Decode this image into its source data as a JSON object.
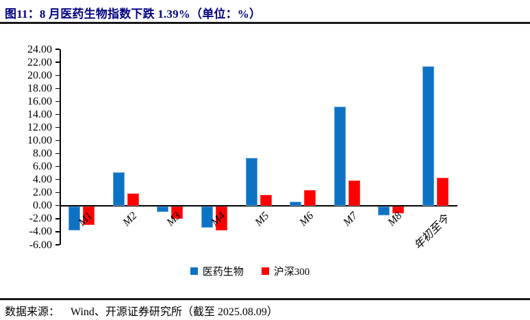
{
  "title": "图11：8 月医药生物指数下跌 1.39%（单位：%）",
  "title_color": "#000080",
  "footer": {
    "source_label": "数据来源：",
    "source_text": "Wind、开源证券研究所（截至 2025.08.09）"
  },
  "chart_data": {
    "type": "bar",
    "title": "8 月医药生物指数下跌 1.39%（单位：%）",
    "categories": [
      "M1",
      "M2",
      "M3",
      "M4",
      "M5",
      "M6",
      "M7",
      "M8",
      "年初至今"
    ],
    "series": [
      {
        "name": "医药生物",
        "color": "#0E72C4",
        "edge_color": "#63A4DE",
        "values": [
          -3.7,
          5.1,
          -0.9,
          -3.3,
          7.3,
          0.6,
          15.2,
          -1.39,
          21.4
        ]
      },
      {
        "name": "沪深300",
        "color": "#FF0000",
        "edge_color": "#FF4040",
        "values": [
          -2.9,
          1.9,
          -1.9,
          -3.7,
          1.7,
          2.4,
          3.9,
          -1.1,
          4.3
        ]
      }
    ],
    "y_ticks": [
      "24.00",
      "22.00",
      "20.00",
      "18.00",
      "16.00",
      "14.00",
      "12.00",
      "10.00",
      "8.00",
      "6.00",
      "4.00",
      "2.00",
      "0.00",
      "-2.00",
      "-4.00",
      "-6.00"
    ],
    "ylim": [
      -6,
      24
    ],
    "xlabel": "",
    "ylabel": "",
    "grid": false,
    "legend_position": "bottom"
  }
}
